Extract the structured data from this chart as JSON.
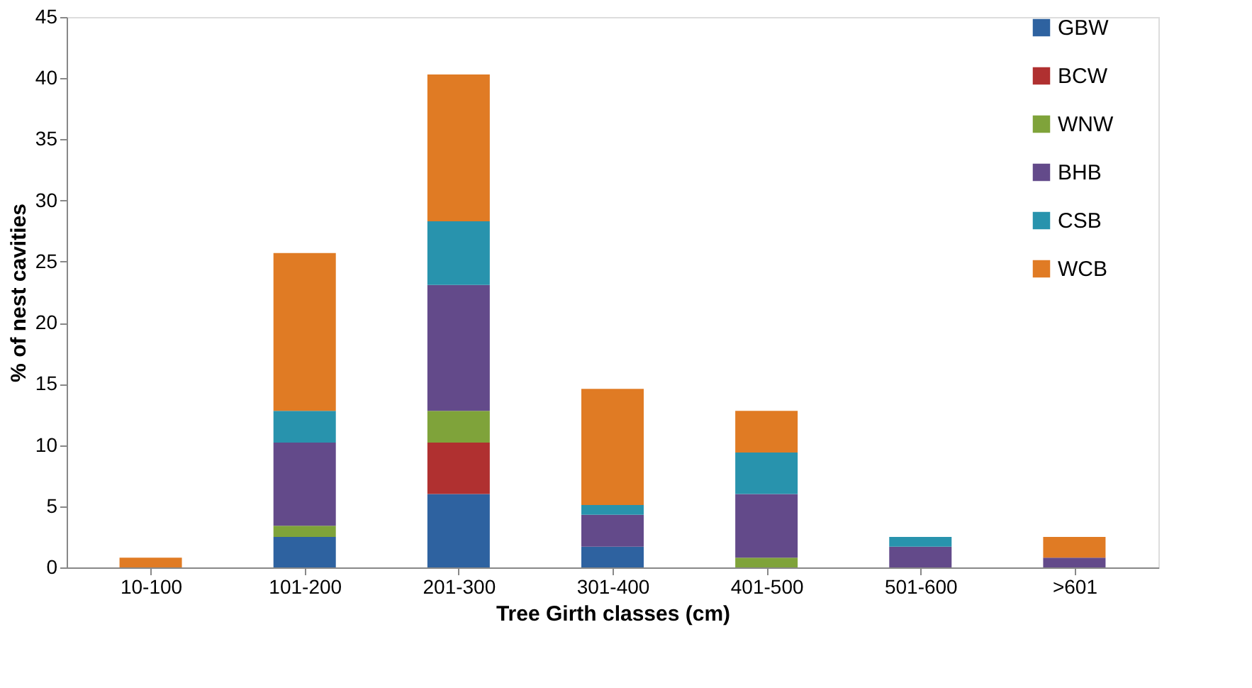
{
  "chart_data": {
    "type": "bar",
    "stacked": true,
    "xlabel": "Tree Girth classes (cm)",
    "ylabel": "% of nest cavities",
    "categories": [
      "10-100",
      "101-200",
      "201-300",
      "301-400",
      "401-500",
      "501-600",
      ">601"
    ],
    "ylim": [
      0,
      45
    ],
    "yticks": [
      0,
      5,
      10,
      15,
      20,
      25,
      30,
      35,
      40,
      45
    ],
    "grid": false,
    "legend": "right",
    "series": [
      {
        "name": "GBW",
        "color": "#2e62a0",
        "values": [
          null,
          2.5,
          6.0,
          1.7,
          null,
          null,
          null
        ]
      },
      {
        "name": "BCW",
        "color": "#b03030",
        "values": [
          null,
          null,
          4.2,
          null,
          null,
          null,
          null
        ]
      },
      {
        "name": "WNW",
        "color": "#7fa33a",
        "values": [
          null,
          0.9,
          2.6,
          null,
          0.8,
          null,
          null
        ]
      },
      {
        "name": "BHB",
        "color": "#634a8a",
        "values": [
          null,
          6.8,
          10.3,
          2.6,
          5.2,
          1.7,
          0.8
        ]
      },
      {
        "name": "CSB",
        "color": "#2893ad",
        "values": [
          null,
          2.6,
          5.2,
          0.8,
          3.4,
          0.8,
          null
        ]
      },
      {
        "name": "WCB",
        "color": "#e07b24",
        "values": [
          0.8,
          12.9,
          12.0,
          9.5,
          3.4,
          null,
          1.7
        ]
      }
    ]
  }
}
